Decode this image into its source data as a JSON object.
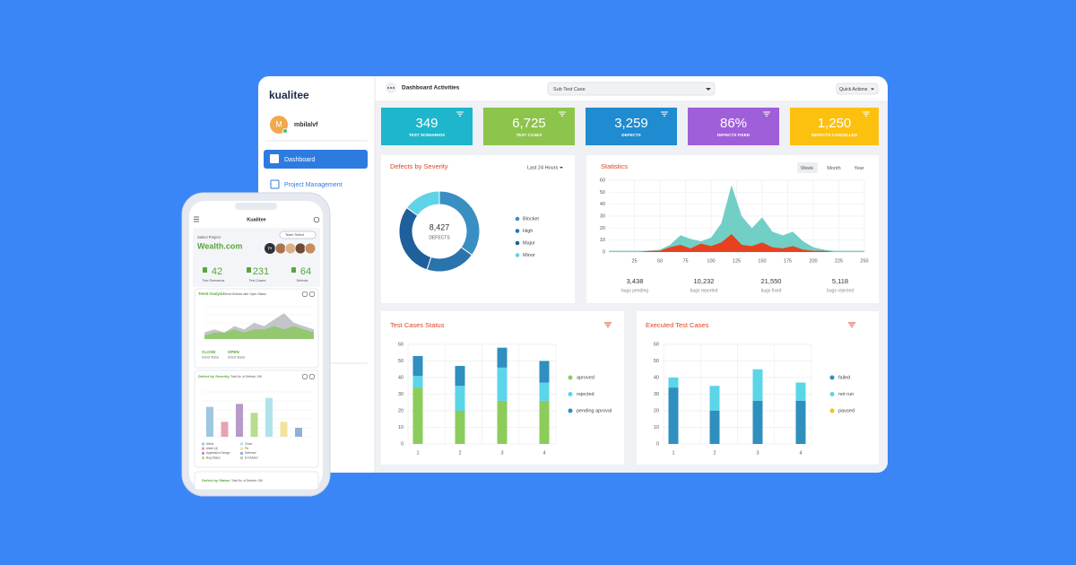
{
  "brand": "kualitee",
  "user": {
    "initial": "M",
    "name": "mbilalvf"
  },
  "nav": [
    "Dashboard",
    "Project Management"
  ],
  "header": {
    "title": "Dashboard Activities",
    "select": "Sub Test Case",
    "actions": "Quick Actions"
  },
  "kpis": [
    {
      "value": "349",
      "label": "TEST SCENARIOS",
      "color": "#1db6cc"
    },
    {
      "value": "6,725",
      "label": "TEST CASES",
      "color": "#8cc44c"
    },
    {
      "value": "3,259",
      "label": "DEFECTS",
      "color": "#1f8bd0"
    },
    {
      "value": "86%",
      "label": "DEFECTS FIXED",
      "color": "#9f5fd9"
    },
    {
      "value": "1,250",
      "label": "DEFECTS CANCELLED",
      "color": "#fcc10f"
    }
  ],
  "severity": {
    "type": "pie",
    "title": "Defects by Severity",
    "period": "Last 24 Hours",
    "center_value": "8,427",
    "center_label": "DEFECTS",
    "segments": [
      {
        "name": "Blocker",
        "color": "#3a8fc2",
        "value": 35
      },
      {
        "name": "High",
        "color": "#2a74ad",
        "value": 20
      },
      {
        "name": "Major",
        "color": "#1f5f9c",
        "value": 30
      },
      {
        "name": "Minor",
        "color": "#5fd3e8",
        "value": 15
      }
    ]
  },
  "statistics": {
    "type": "area",
    "title": "Statistics",
    "tabs": [
      "Week",
      "Month",
      "Year"
    ],
    "x": [
      0,
      10,
      20,
      30,
      40,
      50,
      60,
      70,
      80,
      90,
      100,
      110,
      120,
      130,
      140,
      150,
      160,
      170,
      180,
      190,
      200,
      210,
      220,
      230,
      240,
      250
    ],
    "series": [
      {
        "color": "#72cfc5",
        "values": [
          1,
          1,
          1,
          1,
          1,
          2,
          6,
          14,
          11,
          9,
          12,
          24,
          56,
          30,
          20,
          29,
          17,
          14,
          17,
          9,
          4,
          2,
          1,
          1,
          1,
          1
        ]
      },
      {
        "color": "#e8411f",
        "values": [
          0,
          0,
          0,
          0,
          1,
          1,
          4,
          6,
          3,
          7,
          5,
          8,
          15,
          6,
          5,
          8,
          4,
          3,
          5,
          2,
          1,
          1,
          0,
          0,
          0,
          0
        ]
      }
    ],
    "xlim": [
      0,
      250
    ],
    "xticks": [
      25,
      50,
      75,
      100,
      125,
      150,
      175,
      200,
      225,
      250
    ],
    "ylim": [
      0,
      60
    ],
    "yticks": [
      0,
      10,
      20,
      30,
      40,
      50,
      60
    ],
    "summary": [
      {
        "value": "3,438",
        "label": "bugs pending"
      },
      {
        "value": "10,232",
        "label": "bugs reported"
      },
      {
        "value": "21,550",
        "label": "bugs fixed"
      },
      {
        "value": "5,118",
        "label": "bugs rejected"
      }
    ]
  },
  "test_cases_status": {
    "type": "bar",
    "stacked": true,
    "title": "Test Cases Status",
    "categories": [
      "1",
      "2",
      "3",
      "4"
    ],
    "series": [
      {
        "name": "aproved",
        "color": "#8bcc5a",
        "values": [
          34,
          20,
          26,
          26
        ]
      },
      {
        "name": "rejected",
        "color": "#5bd5e8",
        "values": [
          7,
          15,
          20,
          11
        ]
      },
      {
        "name": "pending aproval",
        "color": "#2f8fbf",
        "values": [
          12,
          12,
          12,
          13
        ]
      }
    ],
    "ylim": [
      0,
      60
    ],
    "yticks": [
      0,
      10,
      20,
      30,
      40,
      50,
      60
    ]
  },
  "executed": {
    "type": "bar",
    "stacked": true,
    "title": "Executed Test Cases",
    "categories": [
      "1",
      "2",
      "3",
      "4"
    ],
    "series": [
      {
        "name": "failed",
        "color": "#2f8fbf",
        "values": [
          34,
          20,
          26,
          26
        ]
      },
      {
        "name": "not run",
        "color": "#5bd5e8",
        "values": [
          6,
          15,
          19,
          11
        ]
      },
      {
        "name": "paused",
        "color": "#f2c318",
        "values": [
          0,
          0,
          0,
          0
        ]
      }
    ],
    "ylim": [
      0,
      60
    ],
    "yticks": [
      0,
      10,
      20,
      30,
      40,
      50,
      60
    ]
  },
  "mobile": {
    "app_title": "Kualitee",
    "project_label": "Select Project",
    "project": "Wealth.com",
    "team_select": "Team Select",
    "team_more": "7+",
    "stats": [
      {
        "value": "42",
        "label": "Test Scenarios"
      },
      {
        "value": "231",
        "label": "Test Cases"
      },
      {
        "value": "64",
        "label": "Defects"
      }
    ],
    "trend": {
      "type": "area",
      "title": "Trend Analysis",
      "subtitle": "Trend Defects with Open Status",
      "x": [
        0,
        1,
        2,
        3,
        4,
        5,
        6,
        7,
        8,
        9,
        10,
        11
      ],
      "series": [
        {
          "color": "#bcbfc5",
          "values": [
            2,
            3,
            2,
            4,
            3,
            5,
            4,
            6,
            8,
            5,
            4,
            3
          ]
        },
        {
          "color": "#8fc866",
          "values": [
            1,
            2,
            2,
            3,
            2,
            3,
            3,
            4,
            3,
            4,
            3,
            2
          ]
        }
      ],
      "xlim": [
        0,
        11
      ],
      "ylim": [
        0,
        10
      ]
    },
    "status": [
      {
        "label": "CLOSE",
        "caption": "Defect Status"
      },
      {
        "label": "OPEN",
        "caption": "Defect Status"
      }
    ],
    "severity": {
      "type": "bar",
      "title": "Defect by Severity",
      "subtitle": "Total No. of Defects: 196",
      "values": [
        10,
        5,
        11,
        8,
        13,
        5,
        3
      ],
      "colors": [
        "#9fc7e0",
        "#e7a2b4",
        "#b79ac8",
        "#b9dc8e",
        "#aee3ea",
        "#f3e29b",
        "#8fb1d6"
      ],
      "ylim": [
        0,
        15
      ],
      "legend": [
        {
          "name": "Alerts",
          "color": "#9fc7e0"
        },
        {
          "name": "Close",
          "color": "#aee3ea"
        },
        {
          "name": "Alarm (4)",
          "color": "#e7a2b4"
        },
        {
          "name": "Fix",
          "color": "#f3e29b"
        },
        {
          "name": "Application Design",
          "color": "#b79ac8"
        },
        {
          "name": "Deferred",
          "color": "#8fb1d6"
        },
        {
          "name": "Bug Status",
          "color": "#b9dc8e"
        },
        {
          "name": "Ext Added",
          "color": "#c5c5c5"
        }
      ]
    },
    "status_card": {
      "title": "Defect by Status",
      "subtitle": "Total No. of Defects: 196"
    }
  }
}
